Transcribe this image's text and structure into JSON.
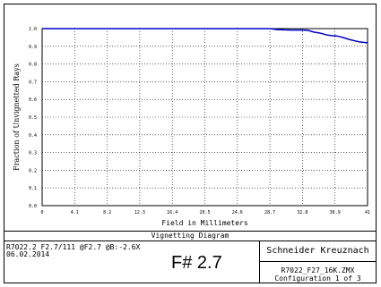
{
  "chart_data": {
    "type": "line",
    "title": "Vignetting Diagram",
    "xlabel": "Field in Millimeters",
    "ylabel": "Fraction of Unvignetted Rays",
    "xlim": [
      0,
      41
    ],
    "ylim": [
      0,
      1.0
    ],
    "x_ticks": [
      "0",
      "4.1",
      "8.2",
      "12.3",
      "16.4",
      "20.5",
      "24.6",
      "28.7",
      "32.8",
      "36.9",
      "41"
    ],
    "y_ticks": [
      "0.0",
      "0.1",
      "0.2",
      "0.3",
      "0.4",
      "0.5",
      "0.6",
      "0.7",
      "0.8",
      "0.9",
      "1.0"
    ],
    "grid": true,
    "line_color": "#0000cc",
    "series": [
      {
        "x": [
          0,
          4.1,
          8.2,
          12.3,
          16.4,
          20.5,
          24.6,
          28.7,
          29.5,
          30.5,
          31.5,
          32.8,
          33.5,
          34.3,
          35.0,
          35.8,
          36.5,
          37.2,
          37.9,
          38.6,
          39.3,
          40.0,
          41.0
        ],
        "y": [
          1.0,
          1.0,
          1.0,
          1.0,
          1.0,
          1.0,
          1.0,
          1.0,
          0.995,
          0.993,
          0.992,
          0.992,
          0.99,
          0.98,
          0.975,
          0.965,
          0.96,
          0.958,
          0.95,
          0.94,
          0.932,
          0.925,
          0.92
        ]
      }
    ]
  },
  "footer": {
    "title": "Vignetting Diagram",
    "info_line1": "R7022.2 F2.7/111 @F2.7 @B:-2.6X",
    "info_line2": "06.02.2014",
    "fnumber": "F# 2.7",
    "company": "Schneider Kreuznach",
    "file": "R7022_F27_16K.ZMX",
    "config": "Configuration 1 of 3"
  }
}
